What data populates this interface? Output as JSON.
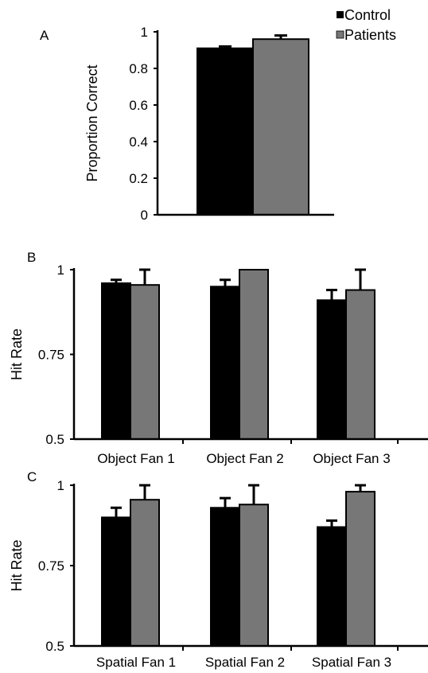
{
  "legend": {
    "entries": [
      {
        "label": "Control",
        "color": "#000000"
      },
      {
        "label": "Patients",
        "color": "#777777"
      }
    ]
  },
  "chart_data": [
    {
      "panel": "A",
      "type": "bar",
      "ylabel": "Proportion Correct",
      "ylim": [
        0,
        1
      ],
      "yticks": [
        "0",
        "0.2",
        "0.4",
        "0.6",
        "0.8",
        "1"
      ],
      "categories": [
        ""
      ],
      "series": [
        {
          "name": "Control",
          "color": "#000000",
          "values": [
            0.91
          ],
          "errors": [
            0.01
          ]
        },
        {
          "name": "Patients",
          "color": "#777777",
          "values": [
            0.96
          ],
          "errors": [
            0.02
          ]
        }
      ]
    },
    {
      "panel": "B",
      "type": "bar",
      "ylabel": "Hit Rate",
      "ylim": [
        0.5,
        1
      ],
      "yticks": [
        "0.5",
        "0.75",
        "1"
      ],
      "categories": [
        "Object Fan 1",
        "Object Fan 2",
        "Object Fan 3"
      ],
      "series": [
        {
          "name": "Control",
          "color": "#000000",
          "values": [
            0.96,
            0.95,
            0.91
          ],
          "errors": [
            0.01,
            0.02,
            0.03
          ]
        },
        {
          "name": "Patients",
          "color": "#777777",
          "values": [
            0.955,
            1.0,
            0.94
          ],
          "errors": [
            0.045,
            0.0,
            0.06
          ]
        }
      ]
    },
    {
      "panel": "C",
      "type": "bar",
      "ylabel": "Hit Rate",
      "ylim": [
        0.5,
        1
      ],
      "yticks": [
        "0.5",
        "0.75",
        "1"
      ],
      "categories": [
        "Spatial Fan 1",
        "Spatial Fan 2",
        "Spatial Fan 3"
      ],
      "series": [
        {
          "name": "Control",
          "color": "#000000",
          "values": [
            0.9,
            0.93,
            0.87
          ],
          "errors": [
            0.03,
            0.03,
            0.02
          ]
        },
        {
          "name": "Patients",
          "color": "#777777",
          "values": [
            0.955,
            0.94,
            0.98
          ],
          "errors": [
            0.045,
            0.06,
            0.02
          ]
        }
      ]
    }
  ]
}
